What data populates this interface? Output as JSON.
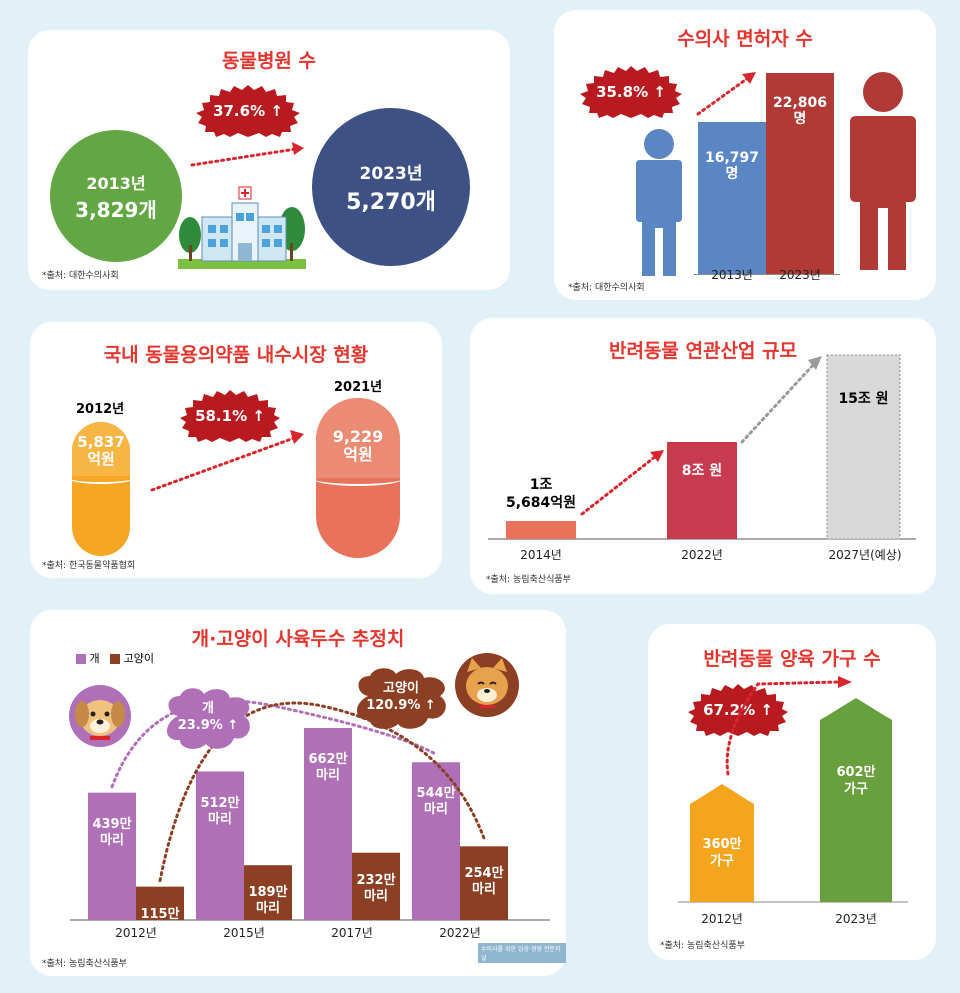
{
  "vet_hospitals": {
    "title": "동물병원 수",
    "increase": "37.6%",
    "arrow": "↑",
    "before": {
      "year": "2013년",
      "count": "3,829개"
    },
    "after": {
      "year": "2023년",
      "count": "5,270개"
    },
    "source": "*출처: 대한수의사회"
  },
  "vet_licenses": {
    "title": "수의사 면허자 수",
    "increase": "35.8%",
    "arrow": "↑",
    "bars": [
      {
        "value": "16,797",
        "unit": "명",
        "year": "2013년"
      },
      {
        "value": "22,806",
        "unit": "명",
        "year": "2023년"
      }
    ],
    "source": "*출처: 대한수의사회"
  },
  "drug_market": {
    "title": "국내 동물용의약품 내수시장 현황",
    "increase": "58.1%",
    "arrow": "↑",
    "before": {
      "year": "2012년",
      "value": "5,837",
      "unit": "억원"
    },
    "after": {
      "year": "2021년",
      "value": "9,229",
      "unit": "억원"
    },
    "source": "*출처: 한국동물약품협회"
  },
  "pet_industry": {
    "title": "반려동물 연관산업 규모",
    "bars": [
      {
        "label_line1": "1조",
        "label_line2": "5,684억원",
        "year": "2014년"
      },
      {
        "label_line1": "8조 원",
        "label_line2": "",
        "year": "2022년"
      },
      {
        "label_line1": "15조 원",
        "label_line2": "",
        "year": "2027년(예상)"
      }
    ],
    "source": "*출처: 농림축산식품부"
  },
  "pet_population": {
    "title": "개·고양이 사육두수 추정치",
    "legend": [
      {
        "name": "개",
        "color": "#b070b8"
      },
      {
        "name": "고양이",
        "color": "#8c3f22"
      }
    ],
    "dog_increase": {
      "name": "개",
      "value": "23.9%",
      "arrow": "↑"
    },
    "cat_increase": {
      "name": "고양이",
      "value": "120.9%",
      "arrow": "↑"
    },
    "groups": [
      {
        "year": "2012년",
        "dog": "439만",
        "cat": "115만",
        "unit": "마리"
      },
      {
        "year": "2015년",
        "dog": "512만",
        "cat": "189만",
        "unit": "마리"
      },
      {
        "year": "2017년",
        "dog": "662만",
        "cat": "232만",
        "unit": "마리"
      },
      {
        "year": "2022년",
        "dog": "544만",
        "cat": "254만",
        "unit": "마리"
      }
    ],
    "source": "*출처: 농림축산식품부",
    "watermark": "수의사를 위한 임상·경영 전문저널"
  },
  "pet_households": {
    "title": "반려동물 양육 가구 수",
    "increase": "67.2%",
    "arrow": "↑",
    "bars": [
      {
        "value": "360만",
        "unit": "가구",
        "year": "2012년"
      },
      {
        "value": "602만",
        "unit": "가구",
        "year": "2023년"
      }
    ],
    "source": "*출처: 농림축산식품부"
  },
  "colors": {
    "title_red": "#e3362f",
    "badge_red": "#b81a1f",
    "green": "#62a744",
    "navy": "#3d5185",
    "blue": "#5b86c4",
    "dark_red": "#b23a36",
    "orange": "#f5a623",
    "salmon": "#e8735a",
    "pink_red": "#c83a4e",
    "gray": "#d9d9d9",
    "purple": "#b070b8",
    "brown": "#8c3f22",
    "household_orange": "#f5a41d",
    "household_green": "#67a03c"
  },
  "chart_data": [
    {
      "type": "bar",
      "title": "개·고양이 사육두수 추정치",
      "categories": [
        "2012년",
        "2015년",
        "2017년",
        "2022년"
      ],
      "series": [
        {
          "name": "개",
          "values": [
            439,
            512,
            662,
            544
          ]
        },
        {
          "name": "고양이",
          "values": [
            115,
            189,
            232,
            254
          ]
        }
      ]
    },
    {
      "type": "bar",
      "title": "반려동물 연관산업 규모",
      "categories": [
        "2014년",
        "2022년",
        "2027년(예상)"
      ],
      "values": [
        1.5684,
        8,
        15
      ]
    }
  ]
}
